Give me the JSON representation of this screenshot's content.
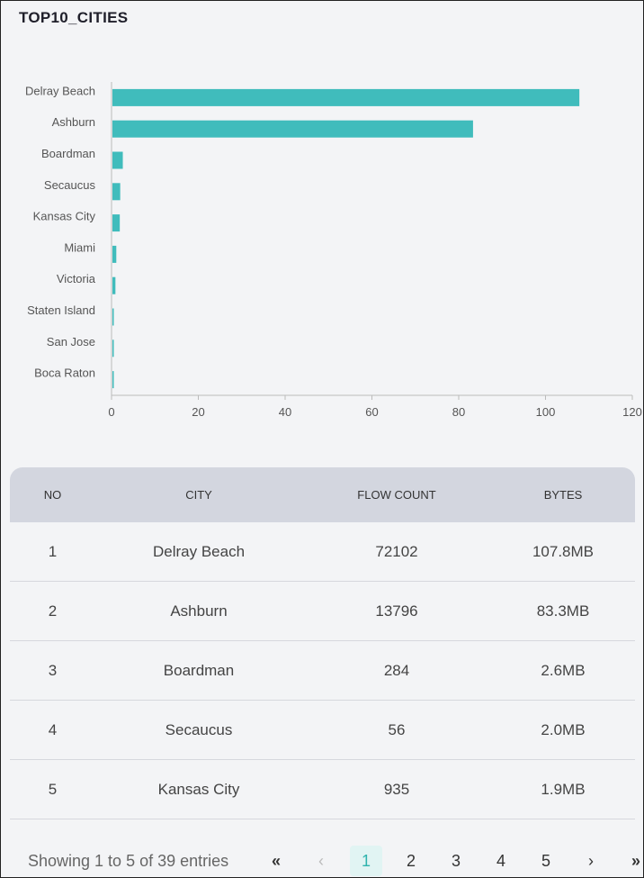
{
  "title": "TOP10_CITIES",
  "colors": {
    "bar": "#40bcbc",
    "axis": "#bbbbbb"
  },
  "chart_data": {
    "type": "bar",
    "orientation": "horizontal",
    "categories": [
      "Delray Beach",
      "Ashburn",
      "Boardman",
      "Secaucus",
      "Kansas City",
      "Miami",
      "Victoria",
      "Staten Island",
      "San Jose",
      "Boca Raton"
    ],
    "values": [
      107.8,
      83.3,
      2.6,
      2.0,
      1.9,
      1.1,
      0.9,
      0.5,
      0.3,
      0.2
    ],
    "xlim": [
      0,
      120
    ],
    "xticks": [
      0,
      20,
      40,
      60,
      80,
      100,
      120
    ],
    "title": "",
    "xlabel": "",
    "ylabel": ""
  },
  "table": {
    "headers": {
      "no": "NO",
      "city": "CITY",
      "flow": "FLOW COUNT",
      "bytes": "BYTES"
    },
    "rows": [
      {
        "no": "1",
        "city": "Delray Beach",
        "flow": "72102",
        "bytes": "107.8MB"
      },
      {
        "no": "2",
        "city": "Ashburn",
        "flow": "13796",
        "bytes": "83.3MB"
      },
      {
        "no": "3",
        "city": "Boardman",
        "flow": "284",
        "bytes": "2.6MB"
      },
      {
        "no": "4",
        "city": "Secaucus",
        "flow": "56",
        "bytes": "2.0MB"
      },
      {
        "no": "5",
        "city": "Kansas City",
        "flow": "935",
        "bytes": "1.9MB"
      }
    ]
  },
  "footer": {
    "entries": "Showing 1 to 5 of 39 entries",
    "first": "«",
    "prev": "‹",
    "pages": [
      "1",
      "2",
      "3",
      "4",
      "5"
    ],
    "next": "›",
    "last": "»"
  }
}
